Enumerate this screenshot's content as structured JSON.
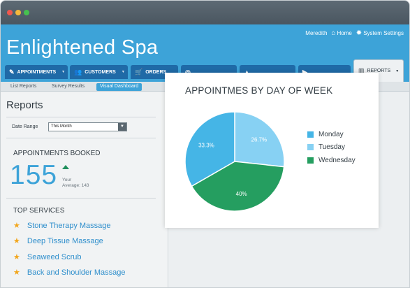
{
  "window": {
    "controls": [
      {
        "name": "close",
        "color": "#f1574d"
      },
      {
        "name": "minimize",
        "color": "#f5b83b"
      },
      {
        "name": "maximize",
        "color": "#46c14f"
      }
    ]
  },
  "header": {
    "brand": "Enlightened Spa",
    "user": "Meredith",
    "home": "Home",
    "settings": "System Settings",
    "bg_color": "#3da3d8"
  },
  "nav": {
    "tabs": [
      {
        "label": "APPOINTMENTS",
        "icon": "pencil-icon"
      },
      {
        "label": "CUSTOMERS",
        "icon": "people-icon"
      },
      {
        "label": "ORDERS",
        "icon": "cart-icon"
      },
      {
        "label": "",
        "icon": "globe-icon"
      },
      {
        "label": "",
        "icon": "chart-icon"
      },
      {
        "label": "",
        "icon": "forward-icon"
      }
    ],
    "reports_tab": {
      "label": "REPORTS",
      "icon": "bar-chart-icon"
    }
  },
  "subnav": {
    "items": [
      "List Reports",
      "Survey Results",
      "Visual Dashboard"
    ],
    "active": "Visual Dashboard"
  },
  "sidebar": {
    "title": "Reports",
    "date_range_label": "Date Range",
    "date_range_value": "This Month",
    "appointments_booked_label": "APPOINTMENTS BOOKED",
    "appointments_booked_value": "155",
    "your_label": "Your",
    "average_label": "Average: 143",
    "top_services_label": "TOP SERVICES",
    "services": [
      "Stone Therapy Massage",
      "Deep Tissue Massage",
      "Seaweed Scrub",
      "Back and Shoulder Massage"
    ]
  },
  "chart_data": {
    "type": "pie",
    "title": "APPOINTMES BY DAY OF WEEK",
    "series": [
      {
        "name": "Monday",
        "value": 33.3,
        "label": "33.3%",
        "color": "#45b5e6"
      },
      {
        "name": "Tuesday",
        "value": 26.7,
        "label": "26.7%",
        "color": "#87d1f3"
      },
      {
        "name": "Wednesday",
        "value": 40,
        "label": "40%",
        "color": "#259e60"
      }
    ],
    "legend_position": "right"
  }
}
